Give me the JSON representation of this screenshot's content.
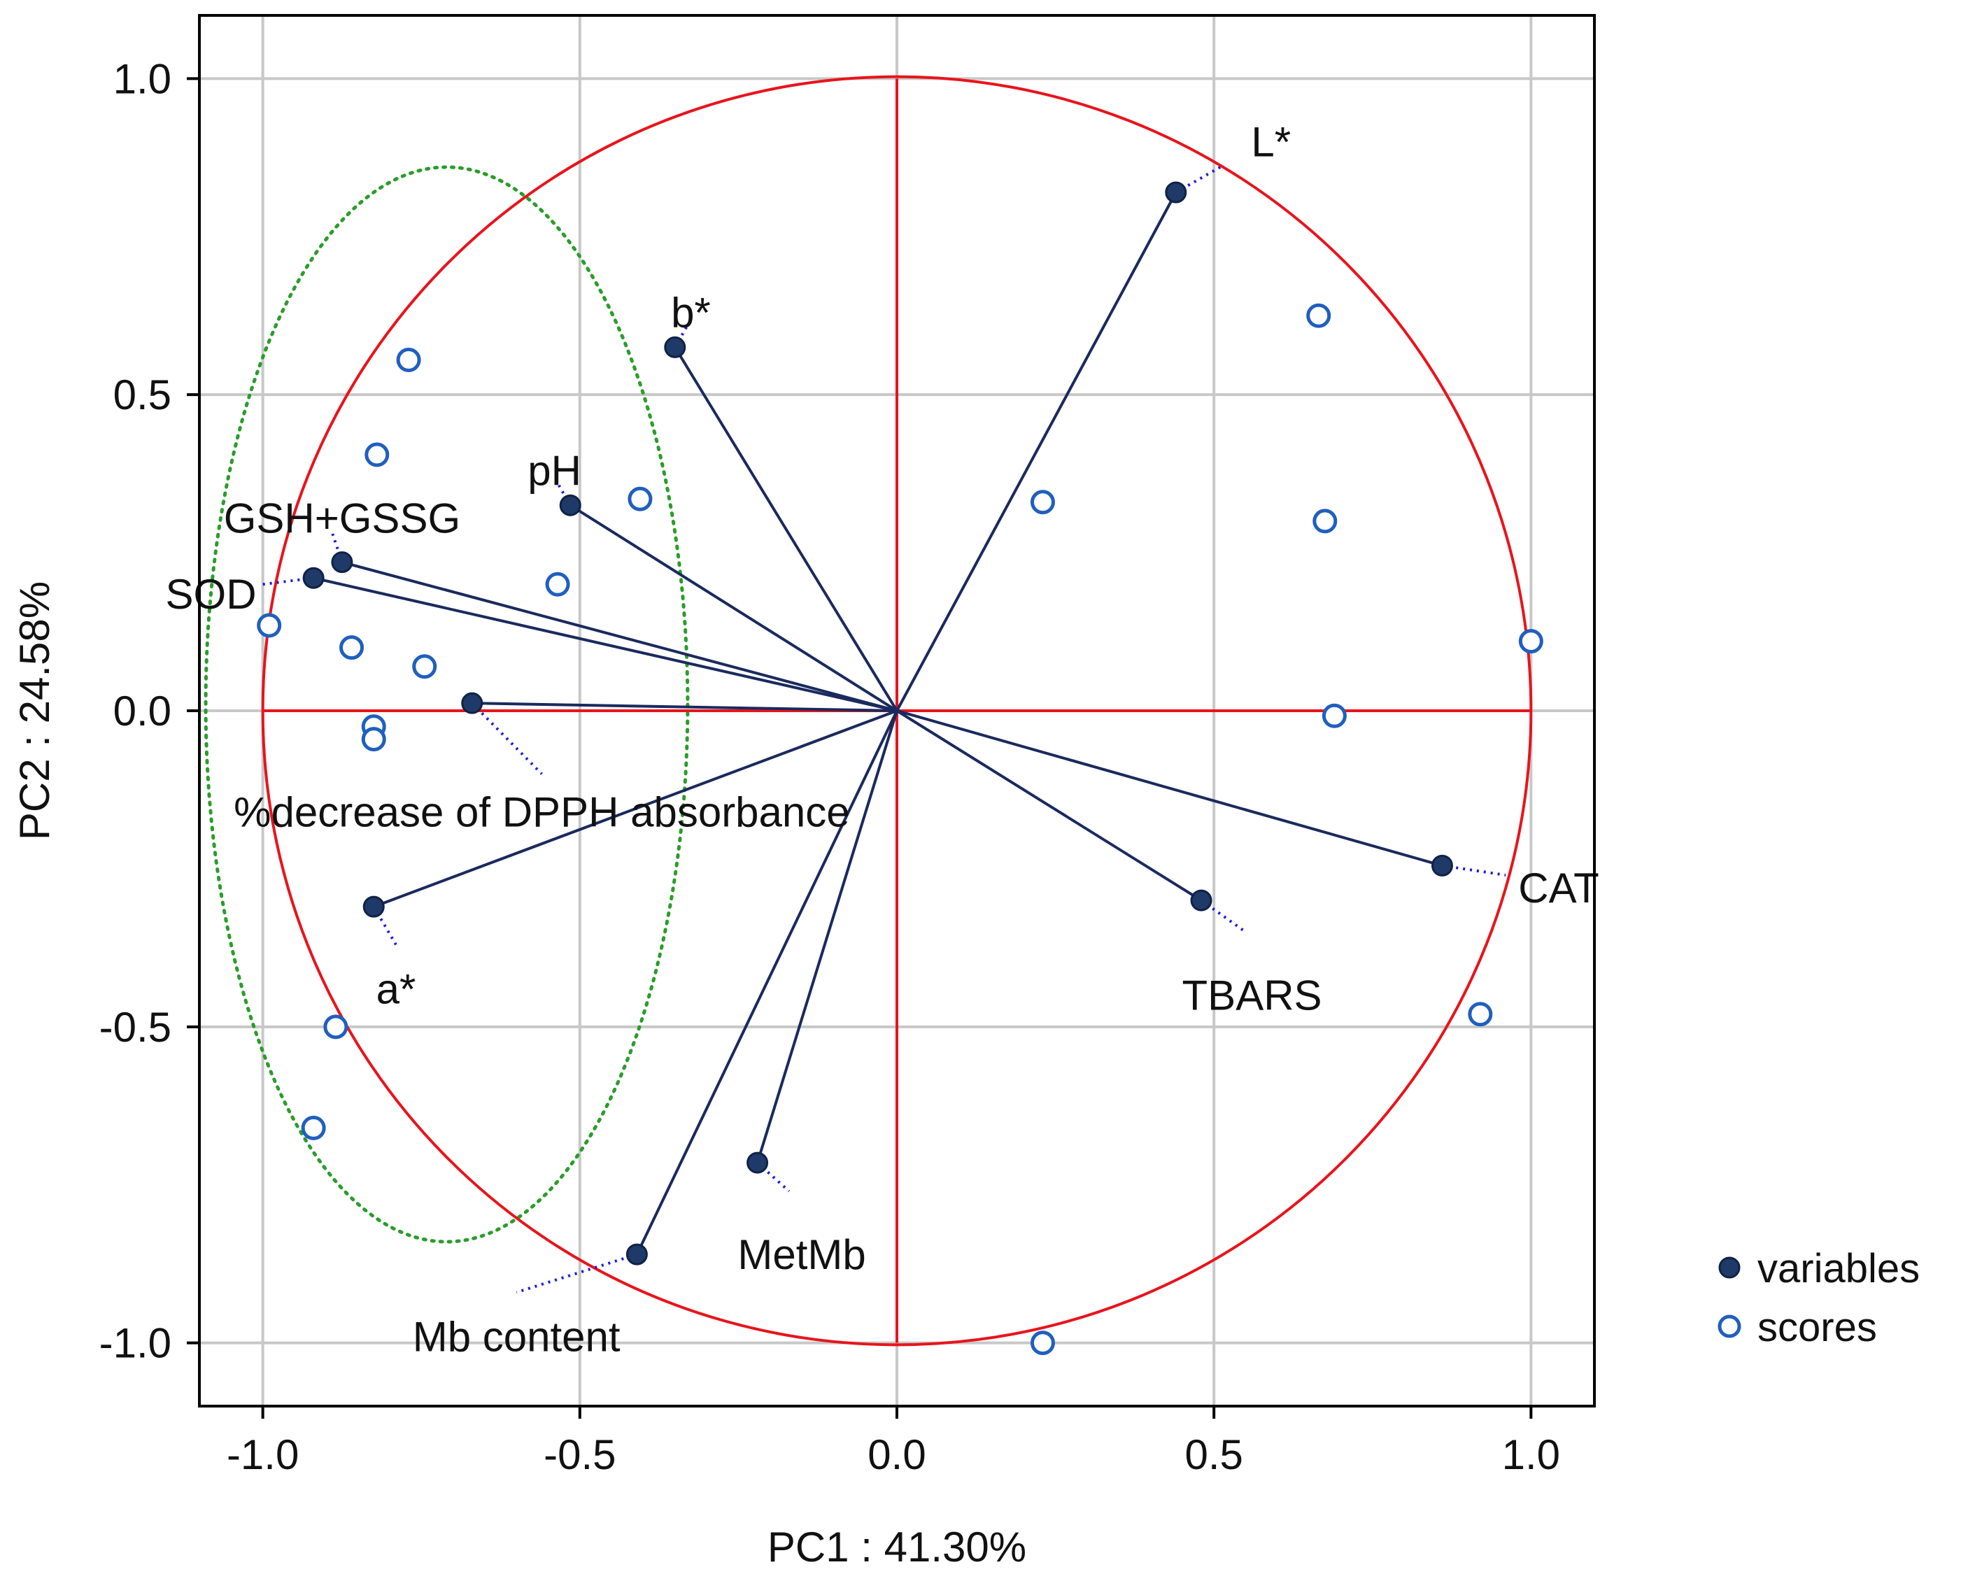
{
  "chart_data": {
    "type": "scatter",
    "subtype": "pca-biplot",
    "title": "",
    "xlabel": "PC1 : 41.30%",
    "ylabel": "PC2 : 24.58%",
    "xlim": [
      -1.1,
      1.1
    ],
    "ylim": [
      -1.1,
      1.1
    ],
    "x_ticks": [
      -1.0,
      -0.5,
      0.0,
      0.5,
      1.0
    ],
    "y_ticks": [
      -1.0,
      -0.5,
      0.0,
      0.5,
      1.0
    ],
    "x_tick_labels": [
      "-1.0",
      "-0.5",
      "0.0",
      "0.5",
      "1.0"
    ],
    "y_tick_labels": [
      "-1.0",
      "-0.5",
      "0.0",
      "0.5",
      "1.0"
    ],
    "grid": true,
    "unit_circle": true,
    "legend_position": "right-bottom",
    "legend": [
      {
        "label": "variables",
        "style": "filled"
      },
      {
        "label": "scores",
        "style": "open"
      }
    ],
    "colors": {
      "variables": "#1f3a68",
      "scores": "#1f5fbf",
      "circle": "#e8141c",
      "ellipse": "#2a9d2a",
      "leader": "#1a1ae0",
      "grid": "#c8c8c8",
      "vector": "#1a2a5e"
    },
    "ellipse": {
      "cx": -0.71,
      "cy": 0.01,
      "rx": 0.38,
      "ry": 0.85
    },
    "variables": [
      {
        "name": "L*",
        "x": 0.44,
        "y": 0.82,
        "lx": 0.59,
        "ly": 0.9,
        "ax": "middle",
        "lead": [
          0.51,
          0.86
        ]
      },
      {
        "name": "b*",
        "x": -0.35,
        "y": 0.575,
        "lx": -0.325,
        "ly": 0.63,
        "ax": "middle",
        "lead": [
          -0.33,
          0.61
        ]
      },
      {
        "name": "pH",
        "x": -0.515,
        "y": 0.325,
        "lx": -0.54,
        "ly": 0.38,
        "ax": "middle",
        "lead": [
          -0.535,
          0.36
        ]
      },
      {
        "name": "GSH+GSSG",
        "x": -0.875,
        "y": 0.235,
        "lx": -0.875,
        "ly": 0.305,
        "ax": "middle",
        "lead": [
          -0.89,
          0.28
        ]
      },
      {
        "name": "SOD",
        "x": -0.92,
        "y": 0.21,
        "lx": -1.01,
        "ly": 0.185,
        "ax": "end",
        "lead": [
          -1.0,
          0.2
        ]
      },
      {
        "name": "%decrease of DPPH absorbance",
        "x": -0.67,
        "y": 0.012,
        "lx": -0.56,
        "ly": -0.16,
        "ax": "middle",
        "lead": [
          -0.56,
          -0.1
        ]
      },
      {
        "name": "a*",
        "x": -0.825,
        "y": -0.31,
        "lx": -0.79,
        "ly": -0.44,
        "ax": "middle",
        "lead": [
          -0.79,
          -0.37
        ]
      },
      {
        "name": "CAT",
        "x": 0.86,
        "y": -0.245,
        "lx": 0.98,
        "ly": -0.28,
        "ax": "start",
        "lead": [
          0.96,
          -0.26
        ]
      },
      {
        "name": "TBARS",
        "x": 0.48,
        "y": -0.3,
        "lx": 0.56,
        "ly": -0.45,
        "ax": "middle",
        "lead": [
          0.55,
          -0.35
        ]
      },
      {
        "name": "MetMb",
        "x": -0.22,
        "y": -0.715,
        "lx": -0.15,
        "ly": -0.86,
        "ax": "middle",
        "lead": [
          -0.17,
          -0.76
        ]
      },
      {
        "name": "Mb content",
        "x": -0.41,
        "y": -0.86,
        "lx": -0.6,
        "ly": -0.99,
        "ax": "middle",
        "lead": [
          -0.6,
          -0.92
        ]
      }
    ],
    "scores": [
      {
        "x": 0.665,
        "y": 0.625
      },
      {
        "x": 0.675,
        "y": 0.3
      },
      {
        "x": 0.23,
        "y": 0.33
      },
      {
        "x": 1.0,
        "y": 0.11
      },
      {
        "x": 0.69,
        "y": -0.008
      },
      {
        "x": 0.92,
        "y": -0.48
      },
      {
        "x": 0.23,
        "y": -1.0
      },
      {
        "x": -0.77,
        "y": 0.555
      },
      {
        "x": -0.82,
        "y": 0.405
      },
      {
        "x": -0.405,
        "y": 0.335
      },
      {
        "x": -0.535,
        "y": 0.2
      },
      {
        "x": -0.99,
        "y": 0.135
      },
      {
        "x": -0.86,
        "y": 0.1
      },
      {
        "x": -0.745,
        "y": 0.07
      },
      {
        "x": -0.825,
        "y": -0.025
      },
      {
        "x": -0.825,
        "y": -0.045
      },
      {
        "x": -0.885,
        "y": -0.5
      },
      {
        "x": -0.92,
        "y": -0.66
      }
    ]
  }
}
